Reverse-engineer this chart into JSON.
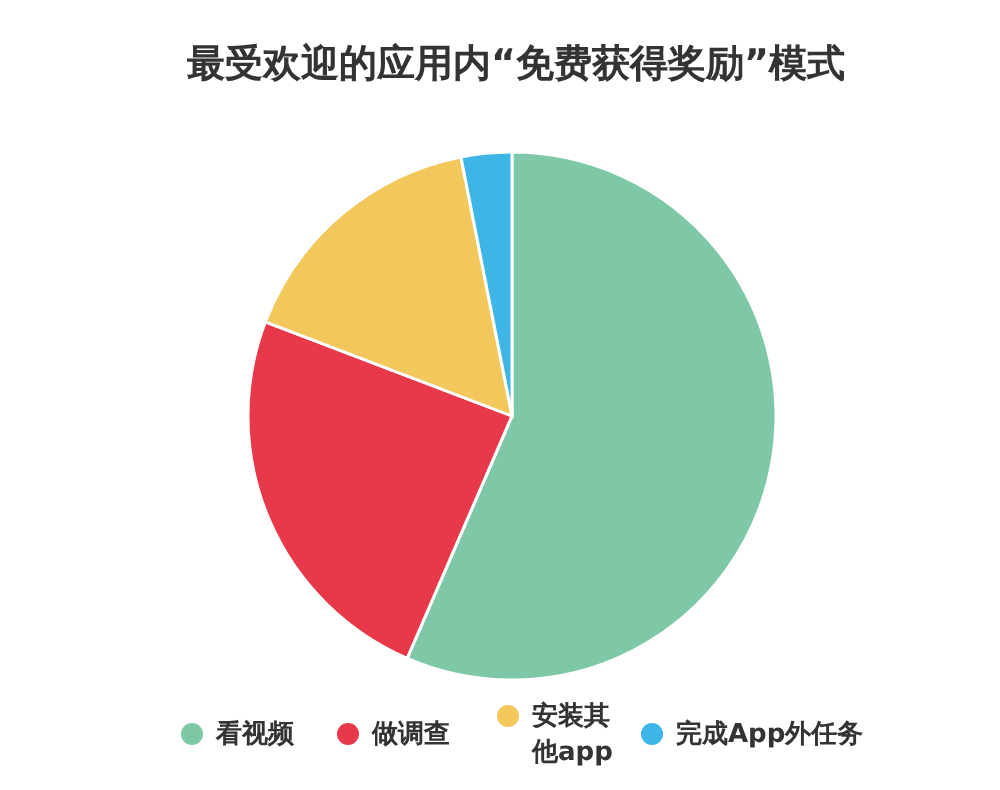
{
  "chart_data": {
    "type": "pie",
    "title": "最受欢迎的应用内“免费获得奖励”模式",
    "categories": [
      "看视频",
      "做调查",
      "安装其他app",
      "完成App外任务"
    ],
    "values": [
      56.5,
      24.3,
      16.1,
      3.1
    ],
    "colors": [
      "#7ec8a8",
      "#e8394a",
      "#f2c75c",
      "#3db5e6"
    ],
    "legend": "bottom"
  }
}
